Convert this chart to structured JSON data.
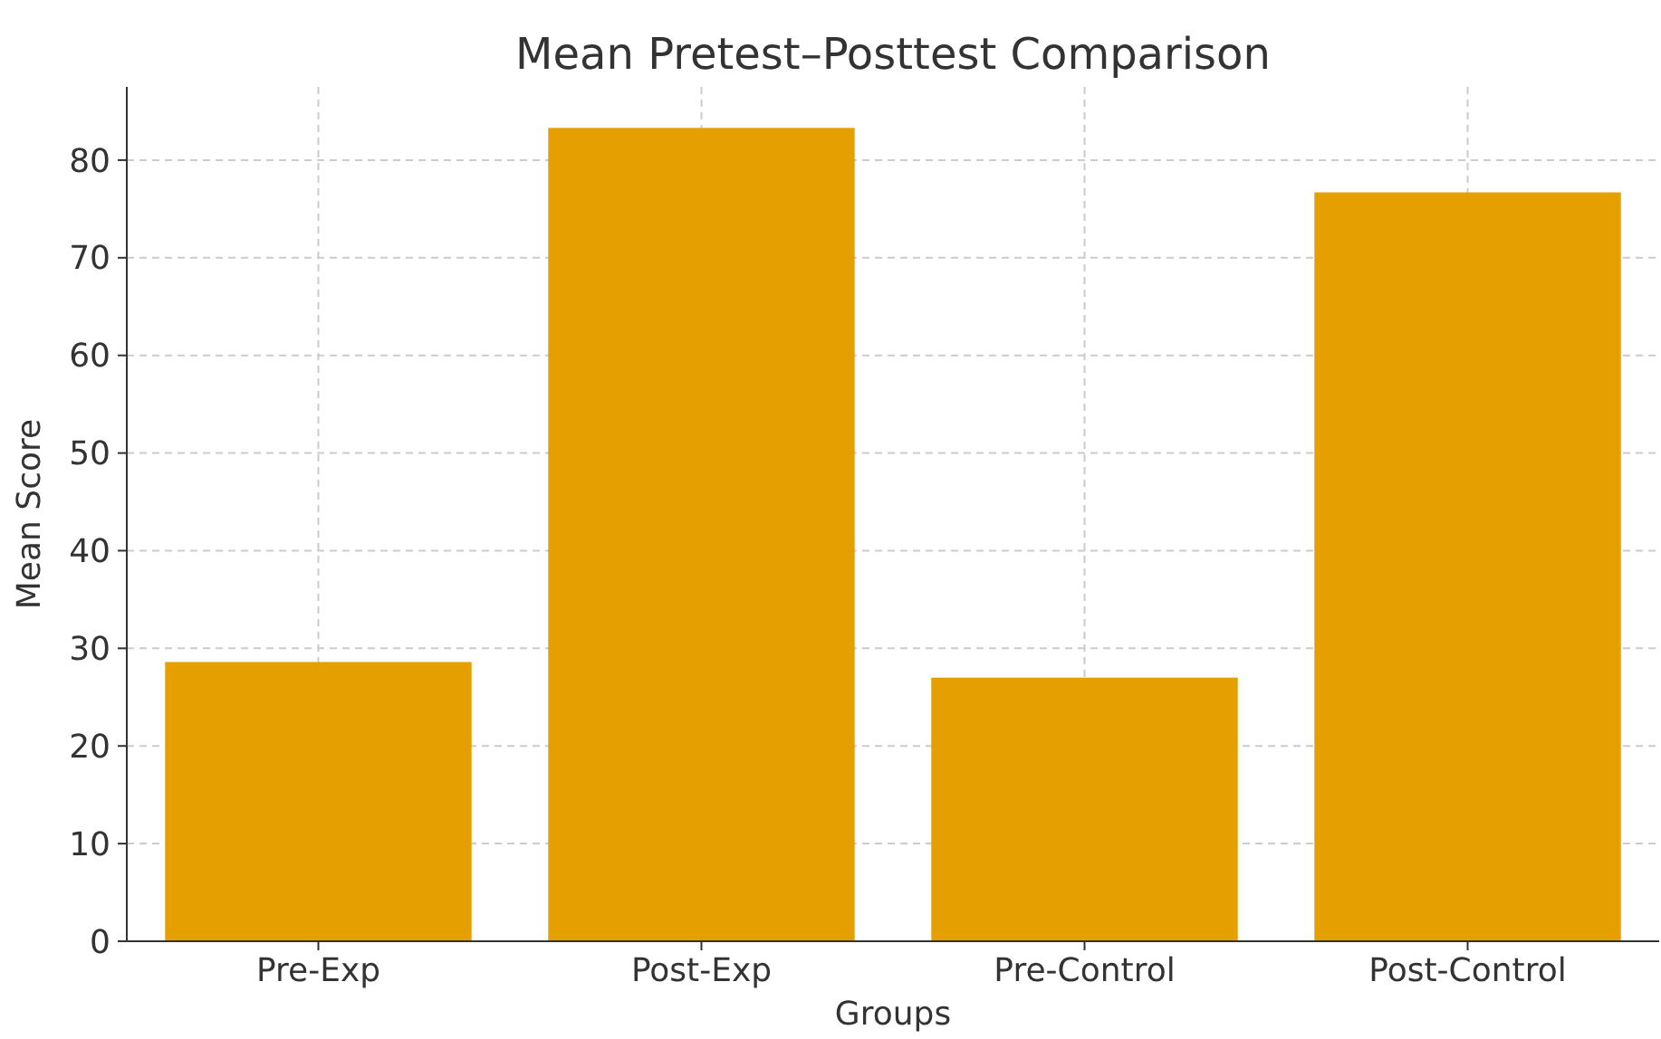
{
  "chart_data": {
    "type": "bar",
    "title": "Mean Pretest–Posttest Comparison",
    "xlabel": "Groups",
    "ylabel": "Mean Score",
    "categories": [
      "Pre-Exp",
      "Post-Exp",
      "Pre-Control",
      "Post-Control"
    ],
    "values": [
      28.6,
      83.3,
      27.0,
      76.7
    ],
    "color": "#e69f00",
    "ylim": [
      0,
      87.5
    ],
    "yticks": [
      0,
      10,
      20,
      30,
      40,
      50,
      60,
      70,
      80
    ],
    "grid": true
  }
}
